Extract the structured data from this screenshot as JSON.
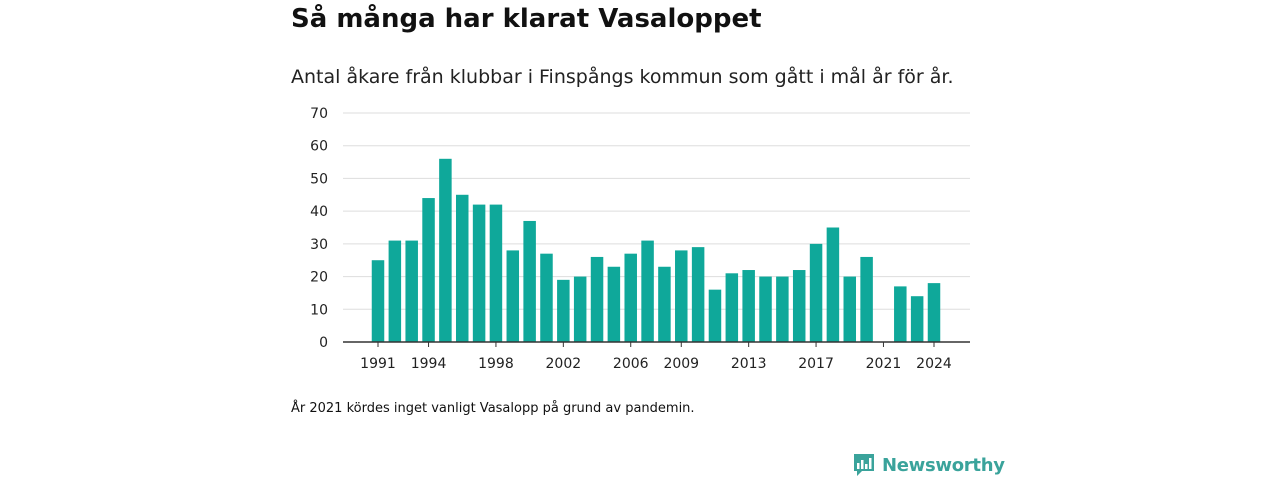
{
  "header": {
    "title": "Så många har klarat Vasaloppet",
    "subtitle": "Antal åkare från klubbar i Finspångs kommun som gått i mål år för år."
  },
  "footnote": "År 2021 kördes inget vanligt Vasalopp på grund av pandemin.",
  "brand": {
    "name": "Newsworthy",
    "color": "#3aa39b"
  },
  "chart_data": {
    "type": "bar",
    "bar_color": "#0fa89a",
    "categories": [
      1991,
      1992,
      1993,
      1994,
      1995,
      1996,
      1997,
      1998,
      1999,
      2000,
      2001,
      2002,
      2003,
      2004,
      2005,
      2006,
      2007,
      2008,
      2009,
      2010,
      2011,
      2012,
      2013,
      2014,
      2015,
      2016,
      2017,
      2018,
      2019,
      2020,
      2021,
      2022,
      2023,
      2024
    ],
    "values": [
      25,
      31,
      31,
      44,
      56,
      45,
      42,
      42,
      28,
      37,
      27,
      19,
      20,
      26,
      23,
      27,
      31,
      23,
      28,
      29,
      16,
      21,
      22,
      20,
      20,
      22,
      30,
      35,
      20,
      26,
      null,
      17,
      14,
      18
    ],
    "x_tick_labels": [
      "1991",
      "1994",
      "1998",
      "2002",
      "2006",
      "2009",
      "2013",
      "2017",
      "2021",
      "2024"
    ],
    "y_ticks": [
      0,
      10,
      20,
      30,
      40,
      50,
      60,
      70
    ],
    "ylim": [
      0,
      70
    ],
    "grid": true
  }
}
